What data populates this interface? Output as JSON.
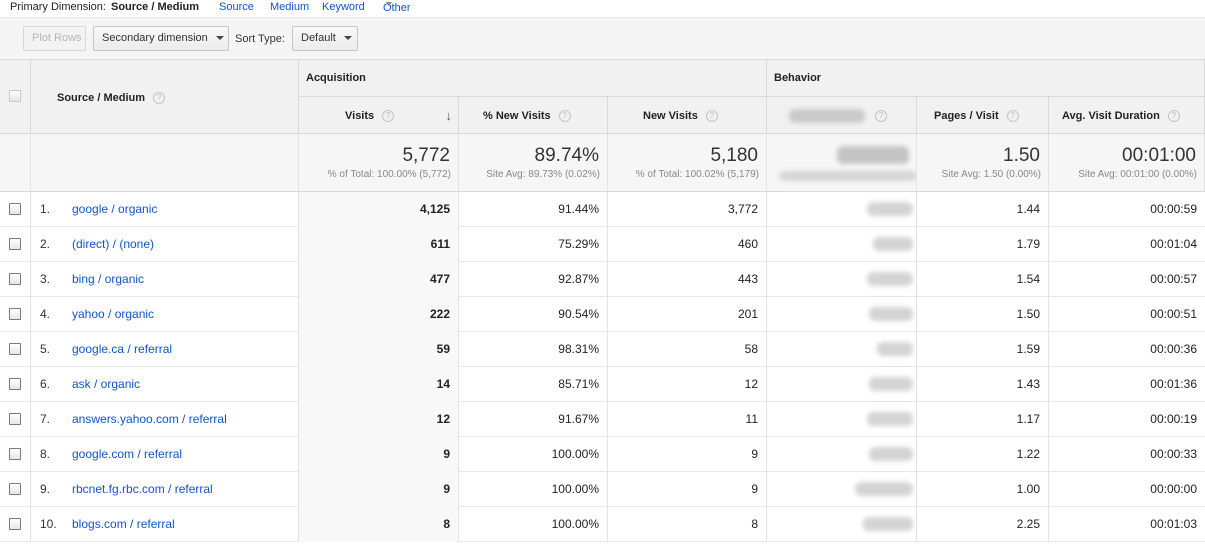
{
  "dimension_bar": {
    "label": "Primary Dimension:",
    "active": "Source / Medium",
    "links": [
      "Source",
      "Medium",
      "Keyword",
      "Other"
    ]
  },
  "toolbar": {
    "plot_rows": "Plot Rows",
    "secondary_dimension": "Secondary dimension",
    "sort_type_label": "Sort Type:",
    "sort_type_value": "Default"
  },
  "table": {
    "groups": {
      "acquisition": "Acquisition",
      "behavior": "Behavior"
    },
    "headers": {
      "source_medium": "Source / Medium",
      "visits": "Visits",
      "pct_new_visits": "% New Visits",
      "new_visits": "New Visits",
      "pages_visit": "Pages / Visit",
      "avg_visit_duration": "Avg. Visit Duration"
    },
    "totals": {
      "visits": "5,772",
      "visits_sub": "% of Total: 100.00% (5,772)",
      "pct_new_visits": "89.74%",
      "pct_new_visits_sub": "Site Avg: 89.73% (0.02%)",
      "new_visits": "5,180",
      "new_visits_sub": "% of Total: 100.02% (5,179)",
      "pages_visit": "1.50",
      "pages_visit_sub": "Site Avg: 1.50 (0.00%)",
      "avg_visit_duration": "00:01:00",
      "avg_visit_duration_sub": "Site Avg: 00:01:00 (0.00%)"
    },
    "rows": [
      {
        "num": "1.",
        "source": "google / organic",
        "visits": "4,125",
        "pct_new": "91.44%",
        "new_visits": "3,772",
        "pages": "1.44",
        "duration": "00:00:59"
      },
      {
        "num": "2.",
        "source": "(direct) / (none)",
        "visits": "611",
        "pct_new": "75.29%",
        "new_visits": "460",
        "pages": "1.79",
        "duration": "00:01:04"
      },
      {
        "num": "3.",
        "source": "bing / organic",
        "visits": "477",
        "pct_new": "92.87%",
        "new_visits": "443",
        "pages": "1.54",
        "duration": "00:00:57"
      },
      {
        "num": "4.",
        "source": "yahoo / organic",
        "visits": "222",
        "pct_new": "90.54%",
        "new_visits": "201",
        "pages": "1.50",
        "duration": "00:00:51"
      },
      {
        "num": "5.",
        "source": "google.ca / referral",
        "visits": "59",
        "pct_new": "98.31%",
        "new_visits": "58",
        "pages": "1.59",
        "duration": "00:00:36"
      },
      {
        "num": "6.",
        "source": "ask / organic",
        "visits": "14",
        "pct_new": "85.71%",
        "new_visits": "12",
        "pages": "1.43",
        "duration": "00:01:36"
      },
      {
        "num": "7.",
        "source": "answers.yahoo.com / referral",
        "visits": "12",
        "pct_new": "91.67%",
        "new_visits": "11",
        "pages": "1.17",
        "duration": "00:00:19"
      },
      {
        "num": "8.",
        "source": "google.com / referral",
        "visits": "9",
        "pct_new": "100.00%",
        "new_visits": "9",
        "pages": "1.22",
        "duration": "00:00:33"
      },
      {
        "num": "9.",
        "source": "rbcnet.fg.rbc.com / referral",
        "visits": "9",
        "pct_new": "100.00%",
        "new_visits": "9",
        "pages": "1.00",
        "duration": "00:00:00"
      },
      {
        "num": "10.",
        "source": "blogs.com / referral",
        "visits": "8",
        "pct_new": "100.00%",
        "new_visits": "8",
        "pages": "2.25",
        "duration": "00:01:03"
      }
    ]
  }
}
